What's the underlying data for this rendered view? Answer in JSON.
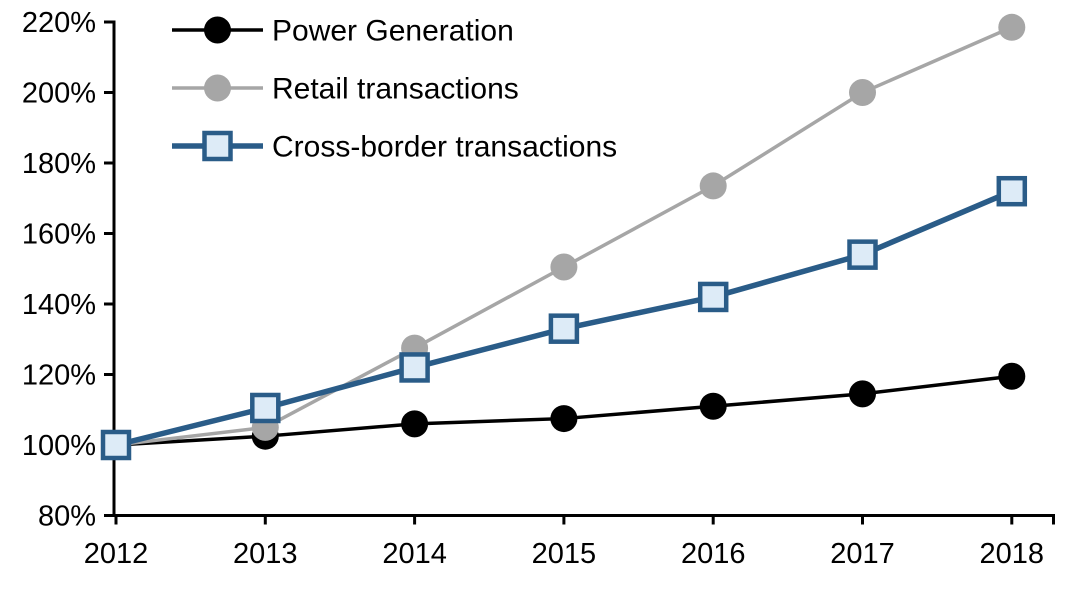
{
  "chart_data": {
    "type": "line",
    "title": "",
    "categories": [
      "2012",
      "2013",
      "2014",
      "2015",
      "2016",
      "2017",
      "2018"
    ],
    "xlabel": "",
    "ylabel": "",
    "ylim": [
      80,
      220
    ],
    "y_ticks": [
      80,
      100,
      120,
      140,
      160,
      180,
      200,
      220
    ],
    "y_tick_suffix": "%",
    "grid": false,
    "legend_position": "top-left",
    "series": [
      {
        "name": "Power Generation",
        "marker": "circle",
        "color": "#000000",
        "marker_fill": "#000000",
        "line_width": 3.5,
        "values": [
          100,
          102.5,
          106,
          107.5,
          111,
          114.5,
          119.5
        ]
      },
      {
        "name": "Retail transactions",
        "marker": "circle",
        "color": "#A6A6A6",
        "marker_fill": "#A6A6A6",
        "line_width": 3.5,
        "values": [
          100,
          105,
          127.5,
          150.5,
          173.5,
          200,
          218.5
        ]
      },
      {
        "name": "Cross-border transactions",
        "marker": "square",
        "color": "#2A5C88",
        "marker_fill": "#DDEBF7",
        "line_width": 5.5,
        "values": [
          100,
          110.5,
          122,
          133,
          142,
          154,
          172
        ]
      }
    ]
  },
  "colors": {
    "axis": "#000000",
    "background": "#ffffff",
    "text": "#000000"
  }
}
